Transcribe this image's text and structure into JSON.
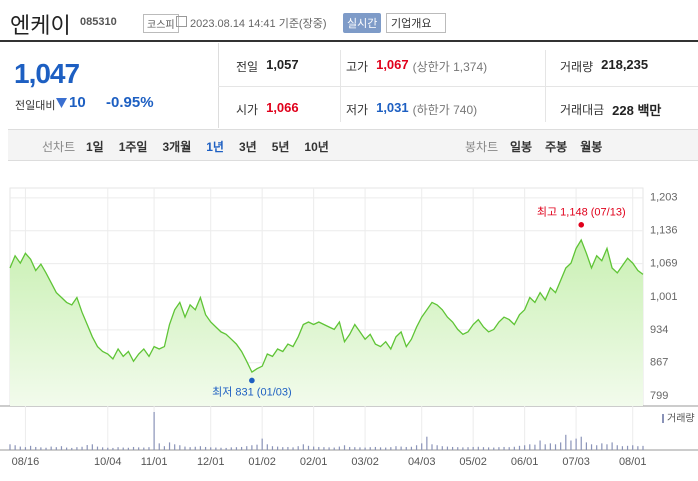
{
  "header": {
    "name": "엔케이",
    "code": "085310",
    "market": "코스피",
    "timestamp": "2023.08.14 14:41 기준(장중)",
    "realtime": "실시간",
    "company": "기업개요"
  },
  "quote": {
    "price": "1,047",
    "change_label": "전일대비",
    "change": "10",
    "change_pct": "-0.95%",
    "stats": [
      {
        "label": "전일",
        "value": "1,057"
      },
      {
        "label": "고가",
        "value": "1,067",
        "note": "(상한가 1,374)",
        "color": "#e0001b"
      },
      {
        "label": "거래량",
        "value": "218,235"
      },
      {
        "label": "시가",
        "value": "1,066",
        "color": "#e0001b"
      },
      {
        "label": "저가",
        "value": "1,031",
        "note": "(하한가 740)",
        "color": "#1d5fc2"
      },
      {
        "label": "거래대금",
        "value": "228 백만"
      }
    ]
  },
  "tabs": {
    "line_label": "선차트",
    "line_periods": [
      "1일",
      "1주일",
      "3개월",
      "1년",
      "3년",
      "5년",
      "10년"
    ],
    "selected": "1년",
    "candle_label": "봉차트",
    "candle_periods": [
      "일봉",
      "주봉",
      "월봉"
    ]
  },
  "chart_data": {
    "type": "line",
    "categories": [
      null,
      null,
      null,
      "08/16",
      null,
      null,
      null,
      null,
      null,
      null,
      null,
      null,
      null,
      null,
      null,
      null,
      null,
      null,
      null,
      "10/04",
      null,
      null,
      null,
      null,
      null,
      null,
      null,
      null,
      "11/01",
      null,
      null,
      null,
      null,
      null,
      null,
      null,
      null,
      null,
      null,
      "12/01",
      null,
      null,
      null,
      null,
      null,
      null,
      null,
      null,
      null,
      "01/02",
      null,
      null,
      null,
      null,
      null,
      null,
      null,
      null,
      null,
      "02/01",
      null,
      null,
      null,
      null,
      null,
      null,
      null,
      null,
      null,
      "03/02",
      null,
      null,
      null,
      null,
      null,
      null,
      null,
      null,
      null,
      null,
      "04/03",
      null,
      null,
      null,
      null,
      null,
      null,
      null,
      null,
      null,
      "05/02",
      null,
      null,
      null,
      null,
      null,
      null,
      null,
      null,
      null,
      "06/01",
      null,
      null,
      null,
      null,
      null,
      null,
      null,
      null,
      null,
      "07/03",
      null,
      null,
      null,
      null,
      null,
      null,
      null,
      null,
      null,
      null,
      "08/01",
      null,
      null
    ],
    "series": [
      {
        "color": "#5fc436",
        "values": [
          1060,
          1085,
          1070,
          1090,
          1078,
          1055,
          1068,
          1050,
          1030,
          1010,
          1000,
          990,
          985,
          1000,
          970,
          945,
          920,
          900,
          890,
          885,
          875,
          895,
          880,
          890,
          870,
          885,
          895,
          880,
          900,
          895,
          900,
          945,
          975,
          990,
          960,
          985,
          975,
          1000,
          965,
          950,
          940,
          930,
          925,
          915,
          905,
          890,
          870,
          848,
          855,
          860,
          885,
          880,
          895,
          890,
          905,
          900,
          920,
          945,
          950,
          945,
          950,
          945,
          940,
          935,
          950,
          910,
          925,
          945,
          930,
          915,
          925,
          905,
          900,
          910,
          895,
          920,
          930,
          900,
          915,
          940,
          960,
          975,
          990,
          985,
          975,
          960,
          950,
          935,
          925,
          930,
          945,
          955,
          940,
          930,
          935,
          950,
          960,
          955,
          945,
          965,
          975,
          1000,
          990,
          1010,
          995,
          1020,
          1010,
          1035,
          1060,
          1070,
          1100,
          1117,
          1090,
          1060,
          1085,
          1075,
          1100,
          1060,
          1050,
          1065,
          1080,
          1070,
          1055,
          1047
        ]
      }
    ],
    "volume": {
      "label": "거래량",
      "color": "#8a93b8",
      "values": [
        300000,
        250000,
        180000,
        150000,
        220000,
        160000,
        140000,
        120000,
        180000,
        150000,
        200000,
        130000,
        110000,
        150000,
        170000,
        260000,
        300000,
        180000,
        140000,
        120000,
        110000,
        150000,
        130000,
        120000,
        160000,
        140000,
        130000,
        150000,
        2000000,
        350000,
        200000,
        400000,
        300000,
        250000,
        180000,
        150000,
        170000,
        200000,
        160000,
        140000,
        130000,
        120000,
        110000,
        140000,
        150000,
        160000,
        200000,
        250000,
        280000,
        600000,
        300000,
        200000,
        180000,
        150000,
        160000,
        140000,
        200000,
        300000,
        220000,
        180000,
        160000,
        150000,
        140000,
        130000,
        180000,
        250000,
        160000,
        150000,
        140000,
        130000,
        150000,
        160000,
        140000,
        130000,
        150000,
        200000,
        180000,
        160000,
        170000,
        250000,
        350000,
        700000,
        300000,
        250000,
        200000,
        180000,
        160000,
        150000,
        140000,
        150000,
        160000,
        170000,
        150000,
        140000,
        130000,
        150000,
        160000,
        150000,
        170000,
        220000,
        250000,
        300000,
        280000,
        500000,
        300000,
        350000,
        300000,
        400000,
        800000,
        500000,
        600000,
        700000,
        400000,
        300000,
        250000,
        350000,
        300000,
        400000,
        250000,
        200000,
        220000,
        250000,
        200000,
        218235
      ]
    },
    "ylim": [
      779,
      1223
    ],
    "yticks": [
      {
        "value": 1203,
        "label": "1,203"
      },
      {
        "value": 1136,
        "label": "1,136"
      },
      {
        "value": 1069,
        "label": "1,069"
      },
      {
        "value": 1001,
        "label": "1,001"
      },
      {
        "value": 934,
        "label": "934"
      },
      {
        "value": 867,
        "label": "867"
      },
      {
        "value": 799,
        "label": "799"
      }
    ],
    "grid": true,
    "annotations": [
      {
        "text": "최고 1,148 (07/13)",
        "value": 1148,
        "at": "max",
        "color": "#e0001b"
      },
      {
        "text": "최저 831 (01/03)",
        "value": 831,
        "at": "min",
        "color": "#1d5fc2"
      }
    ]
  }
}
